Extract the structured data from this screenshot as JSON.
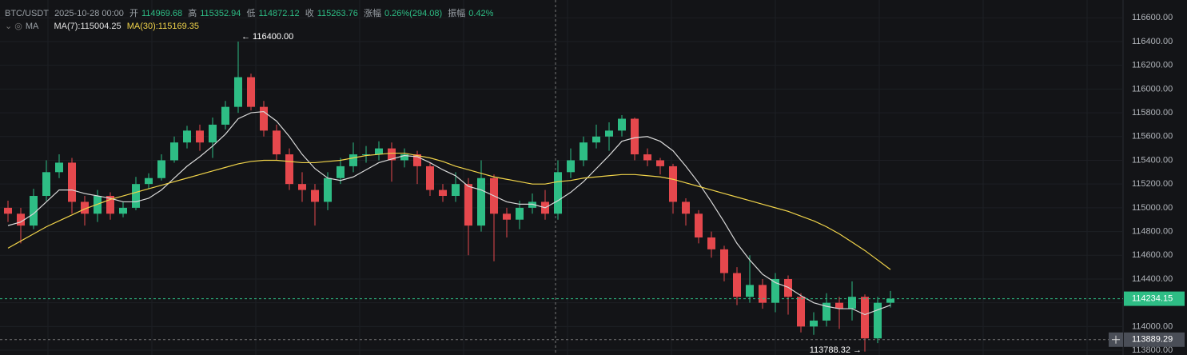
{
  "chart_data": {
    "type": "candlestick",
    "symbol": "BTC/USDT",
    "time": "2025-10-28 00:00",
    "header": {
      "open_label": "开",
      "open": "114969.68",
      "high_label": "高",
      "high": "115352.94",
      "low_label": "低",
      "low": "114872.12",
      "close_label": "收",
      "close": "115263.76",
      "change_label": "涨幅",
      "change": "0.26%(294.08)",
      "amplitude_label": "振幅",
      "amplitude": "0.42%"
    },
    "ma_title": "MA",
    "up_color": "#2ebd85",
    "down_color": "#e5484d",
    "ylim": [
      113760,
      116750
    ],
    "yticks": [
      {
        "value": 116600,
        "label": "116600.00"
      },
      {
        "value": 116400,
        "label": "116400.00"
      },
      {
        "value": 116200,
        "label": "116200.00"
      },
      {
        "value": 116000,
        "label": "116000.00"
      },
      {
        "value": 115800,
        "label": "115800.00"
      },
      {
        "value": 115600,
        "label": "115600.00"
      },
      {
        "value": 115400,
        "label": "115400.00"
      },
      {
        "value": 115200,
        "label": "115200.00"
      },
      {
        "value": 115000,
        "label": "115000.00"
      },
      {
        "value": 114800,
        "label": "114800.00"
      },
      {
        "value": 114600,
        "label": "114600.00"
      },
      {
        "value": 114400,
        "label": "114400.00"
      },
      {
        "value": 114200,
        "label": "114200.00"
      },
      {
        "value": 114000,
        "label": "114000.00"
      },
      {
        "value": 113800,
        "label": "113800.00"
      }
    ],
    "grid": true,
    "open": [
      115000,
      114950,
      114850,
      115100,
      115300,
      115380,
      115050,
      114950,
      115100,
      114950,
      115000,
      115200,
      115250,
      115400,
      115550,
      115650,
      115550,
      115700,
      115850,
      116100,
      115850,
      115650,
      115450,
      115200,
      115150,
      115050,
      115250,
      115350,
      115450,
      115450,
      115500,
      115400,
      115450,
      115350,
      115150,
      115100,
      115200,
      114850,
      115250,
      114950,
      114900,
      115000,
      115050,
      114950,
      115300,
      115400,
      115550,
      115600,
      115650,
      115750,
      115450,
      115400,
      115350,
      115050,
      114950,
      114750,
      114650,
      114450,
      114250,
      114350,
      114200,
      114400,
      114250,
      114000,
      114050,
      114200,
      114150,
      114250,
      113900,
      114200
    ],
    "high": [
      115060,
      115000,
      115160,
      115400,
      115450,
      115420,
      115100,
      115150,
      115130,
      115050,
      115260,
      115290,
      115450,
      115600,
      115690,
      115700,
      115760,
      115900,
      116400,
      116130,
      115900,
      115700,
      115500,
      115300,
      115200,
      115300,
      115420,
      115550,
      115520,
      115560,
      115550,
      115500,
      115480,
      115380,
      115200,
      115300,
      115250,
      115400,
      115280,
      115000,
      115060,
      115120,
      115150,
      115400,
      115500,
      115600,
      115700,
      115720,
      115780,
      115760,
      115500,
      115420,
      115370,
      115080,
      114980,
      114800,
      114680,
      114500,
      114600,
      114400,
      114450,
      114430,
      114280,
      114120,
      114280,
      114250,
      114380,
      114270,
      114250,
      114300
    ],
    "low": [
      114880,
      114700,
      114820,
      115060,
      115250,
      114950,
      114850,
      114880,
      114900,
      114920,
      114980,
      115160,
      115230,
      115380,
      115500,
      115480,
      115420,
      115660,
      115800,
      115820,
      115600,
      115400,
      115150,
      115050,
      114850,
      114980,
      115200,
      115300,
      115380,
      115400,
      115220,
      115340,
      115200,
      115100,
      115050,
      115050,
      114600,
      114800,
      114550,
      114750,
      114820,
      114950,
      114900,
      114900,
      115250,
      115350,
      115500,
      115480,
      115600,
      115400,
      115350,
      115280,
      114950,
      114850,
      114700,
      114580,
      114380,
      114180,
      114200,
      114150,
      114120,
      114100,
      113950,
      113930,
      114000,
      113980,
      114050,
      113788.32,
      113860,
      114160
    ],
    "close": [
      114950,
      114850,
      115100,
      115300,
      115380,
      115050,
      114950,
      115100,
      114950,
      115000,
      115200,
      115250,
      115400,
      115550,
      115650,
      115550,
      115700,
      115850,
      116100,
      115850,
      115650,
      115450,
      115200,
      115150,
      115050,
      115250,
      115350,
      115450,
      115450,
      115500,
      115400,
      115450,
      115350,
      115150,
      115100,
      115200,
      114850,
      115250,
      114950,
      114900,
      115000,
      115050,
      114950,
      115300,
      115400,
      115550,
      115600,
      115650,
      115750,
      115450,
      115400,
      115350,
      115050,
      114950,
      114750,
      114650,
      114450,
      114250,
      114350,
      114200,
      114400,
      114250,
      114000,
      114050,
      114200,
      114150,
      114250,
      113900,
      114200,
      114234.15
    ],
    "lines": [
      {
        "name": "MA(7):115004.25",
        "color": "#d8d8d8",
        "values": [
          114850,
          114880,
          114950,
          115050,
          115150,
          115150,
          115120,
          115100,
          115080,
          115050,
          115050,
          115080,
          115150,
          115250,
          115350,
          115430,
          115520,
          115620,
          115750,
          115800,
          115810,
          115730,
          115600,
          115450,
          115330,
          115250,
          115230,
          115260,
          115320,
          115380,
          115410,
          115440,
          115430,
          115380,
          115320,
          115270,
          115180,
          115150,
          115100,
          115050,
          115030,
          115030,
          115000,
          115060,
          115130,
          115220,
          115330,
          115440,
          115560,
          115590,
          115600,
          115560,
          115480,
          115350,
          115210,
          115050,
          114880,
          114700,
          114560,
          114440,
          114370,
          114330,
          114260,
          114200,
          114170,
          114150,
          114150,
          114100,
          114140,
          114180
        ]
      },
      {
        "name": "MA(30):115169.35",
        "color": "#f0d34a",
        "values": [
          114660,
          114720,
          114780,
          114840,
          114890,
          114940,
          114990,
          115030,
          115070,
          115100,
          115130,
          115160,
          115190,
          115220,
          115250,
          115280,
          115310,
          115340,
          115370,
          115390,
          115400,
          115400,
          115390,
          115380,
          115380,
          115390,
          115400,
          115420,
          115440,
          115450,
          115460,
          115460,
          115440,
          115420,
          115390,
          115350,
          115320,
          115290,
          115260,
          115240,
          115220,
          115200,
          115200,
          115220,
          115230,
          115250,
          115260,
          115270,
          115280,
          115280,
          115270,
          115260,
          115240,
          115210,
          115180,
          115150,
          115120,
          115090,
          115060,
          115030,
          115000,
          114970,
          114930,
          114890,
          114840,
          114780,
          114710,
          114640,
          114560,
          114480
        ]
      }
    ],
    "max_annotation": "← 116400.00",
    "min_annotation": "113788.32 →",
    "last_price": 114234.15,
    "crosshair_price": 113889.29
  }
}
